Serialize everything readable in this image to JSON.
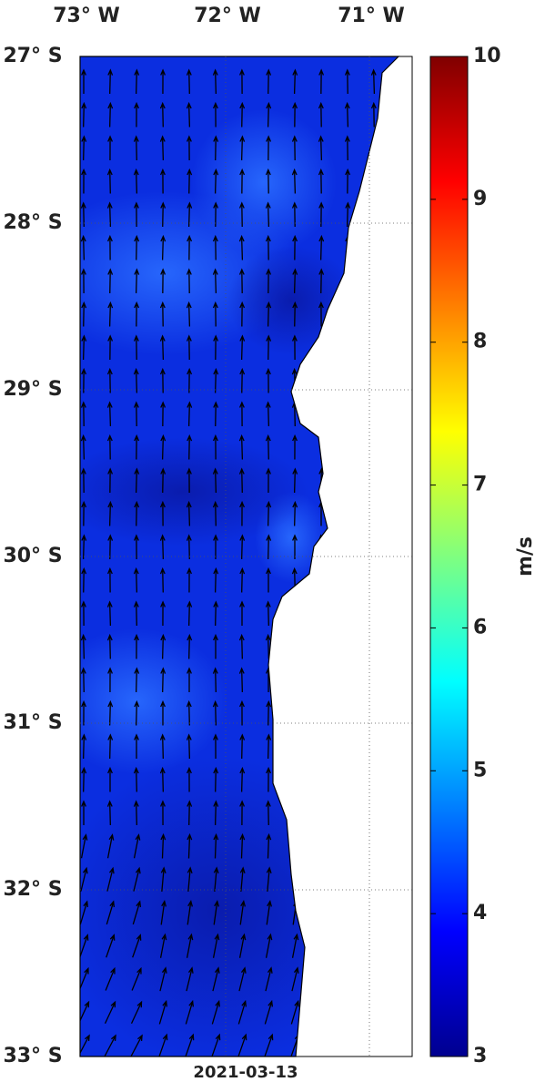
{
  "map": {
    "lon_labels": [
      "73° W",
      "72° W",
      "71° W"
    ],
    "lat_labels": [
      "27° S",
      "28° S",
      "29° S",
      "30° S",
      "31° S",
      "32° S",
      "33° S"
    ],
    "date": "2021-03-13"
  },
  "colorbar": {
    "lim": [
      3,
      10
    ],
    "ticks": [
      3,
      4,
      5,
      6,
      7,
      8,
      9,
      10
    ],
    "label": "m/s"
  }
}
